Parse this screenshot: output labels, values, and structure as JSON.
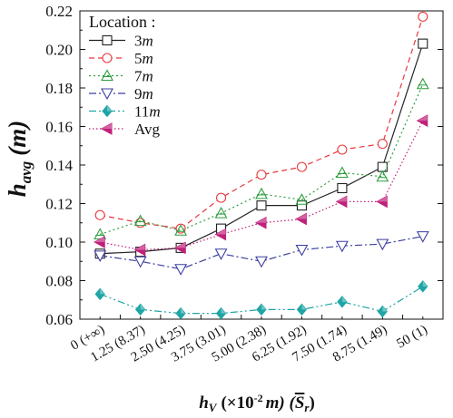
{
  "chart_data": {
    "type": "line",
    "ylabel_main": "h",
    "ylabel_sub": "avg",
    "ylabel_unit": "(m)",
    "xlabel_main": "h",
    "xlabel_sub": "V",
    "xlabel_rest": "(×10",
    "xlabel_exp": "-2",
    "xlabel_unit": "m) (",
    "xlabel_s": "S",
    "xlabel_s_sub": "r",
    "xlabel_close": ")",
    "categories": [
      "0 (+∞)",
      "1.25 (8.37)",
      "2.50 (4.25)",
      "3.75 (3.01)",
      "5.00 (2.38)",
      "6.25 (1.92)",
      "7.50 (1.74)",
      "8.75 (1.49)",
      "50 (1)"
    ],
    "ylim": [
      0.06,
      0.22
    ],
    "yticks": [
      "0.06",
      "0.08",
      "0.10",
      "0.12",
      "0.14",
      "0.16",
      "0.18",
      "0.20",
      "0.22"
    ],
    "legend_title": "Location :",
    "legend_position": "top-left",
    "series": [
      {
        "name": "3",
        "unit": "m",
        "color": "#222222",
        "dash": "solid",
        "marker": "square",
        "values": [
          0.094,
          0.095,
          0.097,
          0.107,
          0.119,
          0.119,
          0.128,
          0.139,
          0.203
        ]
      },
      {
        "name": "5",
        "unit": "m",
        "color": "#e8383d",
        "dash": "dashed",
        "marker": "circle",
        "values": [
          0.114,
          0.11,
          0.107,
          0.123,
          0.135,
          0.139,
          0.148,
          0.151,
          0.217
        ]
      },
      {
        "name": "7",
        "unit": "m",
        "color": "#2e9e3e",
        "dash": "dotted",
        "marker": "triangle-up",
        "values": [
          0.104,
          0.111,
          0.106,
          0.115,
          0.125,
          0.122,
          0.136,
          0.134,
          0.182
        ]
      },
      {
        "name": "9",
        "unit": "m",
        "color": "#3b3fa0",
        "dash": "dashdot",
        "marker": "triangle-down",
        "values": [
          0.093,
          0.09,
          0.086,
          0.094,
          0.09,
          0.096,
          0.098,
          0.099,
          0.103
        ]
      },
      {
        "name": "11",
        "unit": "m",
        "color": "#1fa5a5",
        "dash": "dashdotdot",
        "marker": "diamond",
        "values": [
          0.073,
          0.065,
          0.063,
          0.063,
          0.065,
          0.065,
          0.069,
          0.064,
          0.077
        ]
      },
      {
        "name": "Avg",
        "unit": "",
        "color": "#c0207a",
        "dash": "short-dotted",
        "marker": "triangle-left",
        "values": [
          0.1,
          0.096,
          0.097,
          0.104,
          0.11,
          0.112,
          0.121,
          0.121,
          0.163
        ]
      }
    ]
  }
}
